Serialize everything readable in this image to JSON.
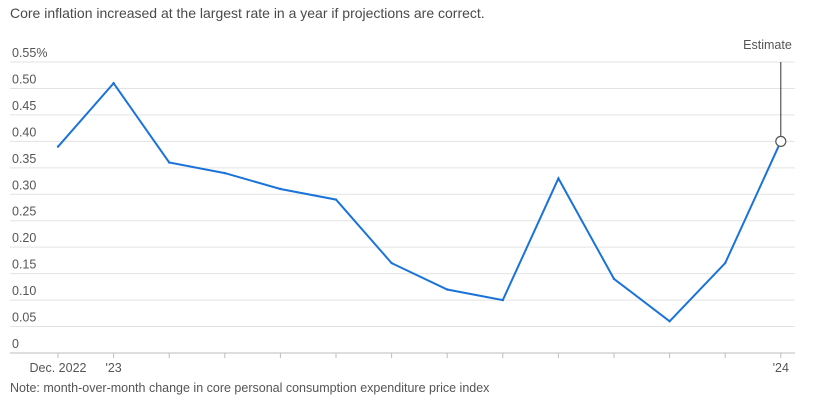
{
  "title": "Core inflation increased at the largest rate in a year if projections are correct.",
  "note": "Note: month-over-month change in core personal consumption expenditure price index",
  "chart_data": {
    "type": "line",
    "title": "Core inflation increased at the largest rate in a year if projections are correct.",
    "xlabel": "",
    "ylabel": "",
    "x_tick_labels": [
      "Dec. 2022",
      "'23",
      "",
      "",
      "",
      "",
      "",
      "",
      "",
      "",
      "",
      "",
      "",
      "'24"
    ],
    "y_ticks": [
      0,
      0.05,
      0.1,
      0.15,
      0.2,
      0.25,
      0.3,
      0.35,
      0.4,
      0.45,
      0.5,
      0.55
    ],
    "y_tick_labels": [
      "0",
      "0.05",
      "0.10",
      "0.15",
      "0.20",
      "0.25",
      "0.30",
      "0.35",
      "0.40",
      "0.45",
      "0.50",
      "0.55%"
    ],
    "ylim": [
      0,
      0.55
    ],
    "grid": true,
    "series": [
      {
        "color": "#1a73d9",
        "values": [
          0.39,
          0.51,
          0.36,
          0.34,
          0.31,
          0.29,
          0.17,
          0.12,
          0.1,
          0.33,
          0.14,
          0.06,
          0.17,
          0.4
        ]
      }
    ],
    "annotation": {
      "label": "Estimate",
      "index": 13
    }
  }
}
